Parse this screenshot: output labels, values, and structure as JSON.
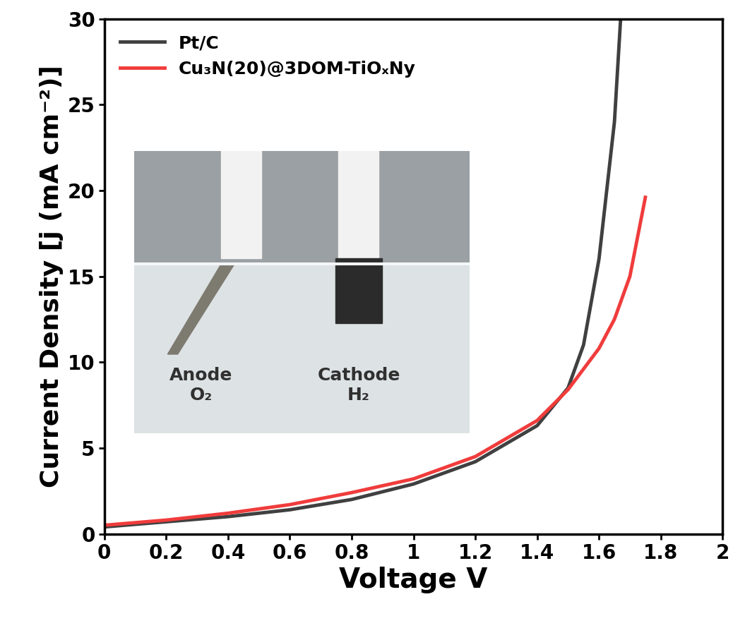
{
  "chart_data": {
    "type": "line",
    "x_label": "Voltage V",
    "y_label": "Current Density [j (mA cm⁻²)]",
    "series": [
      {
        "name": "Pt/C",
        "color": "#404040",
        "x": [
          0,
          0.2,
          0.4,
          0.6,
          0.8,
          1.0,
          1.2,
          1.4,
          1.5,
          1.55,
          1.6,
          1.65,
          1.67
        ],
        "values": [
          0.4,
          0.7,
          1.0,
          1.4,
          2.0,
          2.9,
          4.2,
          6.3,
          8.5,
          11,
          16,
          24,
          30
        ]
      },
      {
        "name": "Cu₃N(20)@3DOM-TiOₓNy",
        "color": "#f03c3c",
        "x": [
          0,
          0.2,
          0.4,
          0.6,
          0.8,
          1.0,
          1.2,
          1.4,
          1.5,
          1.6,
          1.65,
          1.7,
          1.75
        ],
        "values": [
          0.5,
          0.8,
          1.2,
          1.7,
          2.4,
          3.2,
          4.5,
          6.6,
          8.4,
          10.8,
          12.5,
          15,
          19.6
        ]
      }
    ],
    "xlim": [
      0,
      2
    ],
    "xticks": [
      0,
      0.2,
      0.4,
      0.6,
      0.8,
      1,
      1.2,
      1.4,
      1.6,
      1.8,
      2
    ],
    "ylim": [
      0,
      30
    ],
    "yticks": [
      0,
      5,
      10,
      15,
      20,
      25,
      30
    ],
    "legend": "upper left",
    "annotations": [
      "Anode\nO₂",
      "Cathode\nH₂"
    ]
  }
}
